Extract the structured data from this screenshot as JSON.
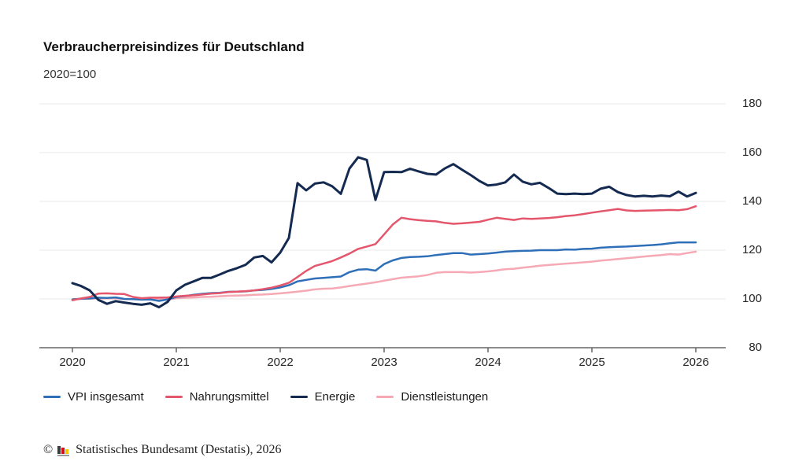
{
  "title": "Verbraucherpreisindizes für Deutschland",
  "subtitle": "2020=100",
  "footer": {
    "copyright": "©",
    "source": "Statistisches Bundesamt (Destatis), 2026"
  },
  "colors": {
    "vpi_blue": "#2e6fb8",
    "nahrungsmittel_red": "#e4566b",
    "energie_navy": "#142a50",
    "dienstleistungen_pink": "#f5a9b5",
    "gridline": "#e8e8e8",
    "axis": "#666666"
  },
  "chart_data": {
    "type": "line",
    "title": "Verbraucherpreisindizes für Deutschland",
    "subtitle": "2020=100",
    "x_unit": "month",
    "x_start": "2020-01",
    "x_end": "2026-01",
    "xticks": [
      "2020",
      "2021",
      "2022",
      "2023",
      "2024",
      "2025",
      "2026"
    ],
    "yticks": [
      "180",
      "160",
      "140",
      "120",
      "100",
      "80"
    ],
    "ylim": [
      80,
      180
    ],
    "grid": "horizontal",
    "legend_position": "bottom",
    "series": [
      {
        "name": "VPI insgesamt",
        "color": "#2e6fb8",
        "values": [
          99.8,
          100.1,
          100.2,
          100.5,
          100.4,
          100.6,
          100.0,
          99.9,
          99.7,
          99.8,
          99.2,
          99.8,
          100.8,
          101.2,
          101.7,
          102.1,
          102.4,
          102.5,
          102.9,
          103.0,
          103.1,
          103.5,
          103.7,
          104.1,
          104.7,
          105.6,
          107.2,
          107.8,
          108.4,
          108.6,
          108.9,
          109.2,
          111.0,
          112.0,
          112.2,
          111.6,
          114.3,
          115.8,
          116.8,
          117.2,
          117.3,
          117.5,
          118.0,
          118.4,
          118.8,
          118.8,
          118.2,
          118.4,
          118.6,
          119.0,
          119.4,
          119.6,
          119.7,
          119.8,
          120.0,
          120.0,
          120.0,
          120.3,
          120.2,
          120.5,
          120.6,
          121.0,
          121.2,
          121.4,
          121.5,
          121.7,
          121.9,
          122.1,
          122.4,
          122.8,
          123.2,
          123.2,
          123.2
        ]
      },
      {
        "name": "Nahrungsmittel",
        "color": "#e4566b",
        "values": [
          99.5,
          100.2,
          100.8,
          102.2,
          102.3,
          102.1,
          102.0,
          100.8,
          100.3,
          100.5,
          100.5,
          100.6,
          101.0,
          101.3,
          101.5,
          101.8,
          102.2,
          102.4,
          102.8,
          103.0,
          103.2,
          103.5,
          104.0,
          104.6,
          105.5,
          106.6,
          109.0,
          111.5,
          113.5,
          114.5,
          115.5,
          117.0,
          118.6,
          120.5,
          121.5,
          122.5,
          126.5,
          130.5,
          133.3,
          132.7,
          132.3,
          132.0,
          131.8,
          131.2,
          130.8,
          131.0,
          131.3,
          131.6,
          132.5,
          133.3,
          132.8,
          132.4,
          133.0,
          132.8,
          133.0,
          133.2,
          133.5,
          134.0,
          134.3,
          134.8,
          135.4,
          135.9,
          136.4,
          136.9,
          136.3,
          136.1,
          136.2,
          136.3,
          136.4,
          136.5,
          136.4,
          136.8,
          138.0
        ]
      },
      {
        "name": "Energie",
        "color": "#142a50",
        "values": [
          106.5,
          105.3,
          103.5,
          99.6,
          98.0,
          99.1,
          98.5,
          98.0,
          97.6,
          98.2,
          96.6,
          98.8,
          103.5,
          105.8,
          107.2,
          108.6,
          108.6,
          110.0,
          111.5,
          112.6,
          114.0,
          117.0,
          117.6,
          115.0,
          119.0,
          125.0,
          147.5,
          144.5,
          147.3,
          147.8,
          146.2,
          143.1,
          153.5,
          158.1,
          157.0,
          140.6,
          152.0,
          152.1,
          152.0,
          153.4,
          152.3,
          151.3,
          151.0,
          153.5,
          155.3,
          153.0,
          150.8,
          148.4,
          146.5,
          146.9,
          147.8,
          151.0,
          148.1,
          147.0,
          147.6,
          145.5,
          143.2,
          143.0,
          143.2,
          143.0,
          143.2,
          145.2,
          146.0,
          143.8,
          142.6,
          142.0,
          142.3,
          142.0,
          142.4,
          142.1,
          144.0,
          142.0,
          143.5
        ]
      },
      {
        "name": "Dienstleistungen",
        "color": "#f5a9b5",
        "values": [
          99.8,
          100.0,
          100.1,
          100.2,
          100.2,
          100.3,
          99.9,
          99.9,
          99.8,
          99.8,
          99.7,
          99.7,
          100.3,
          100.5,
          100.6,
          100.8,
          100.9,
          101.1,
          101.3,
          101.4,
          101.5,
          101.7,
          101.8,
          102.0,
          102.3,
          102.6,
          103.0,
          103.4,
          103.9,
          104.2,
          104.3,
          104.7,
          105.3,
          105.8,
          106.3,
          106.8,
          107.5,
          108.1,
          108.7,
          109.0,
          109.3,
          109.8,
          110.7,
          111.0,
          111.0,
          111.0,
          110.8,
          111.0,
          111.3,
          111.7,
          112.2,
          112.4,
          112.8,
          113.2,
          113.6,
          113.9,
          114.2,
          114.5,
          114.7,
          115.0,
          115.3,
          115.7,
          116.0,
          116.4,
          116.7,
          117.0,
          117.4,
          117.7,
          118.0,
          118.4,
          118.2,
          118.8,
          119.4
        ]
      }
    ]
  }
}
